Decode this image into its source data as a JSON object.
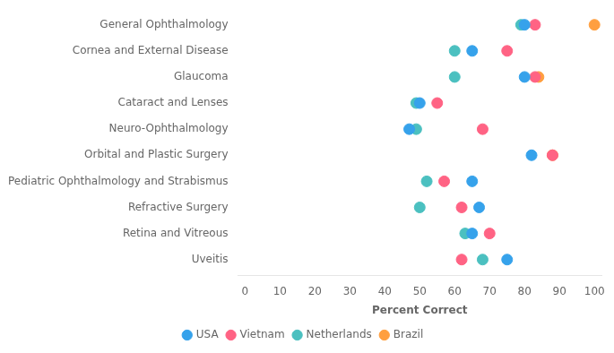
{
  "chart_data": {
    "type": "scatter",
    "categories": [
      "General Ophthalmology",
      "Cornea and External Disease",
      "Glaucoma",
      "Cataract and Lenses",
      "Neuro-Ophthalmology",
      "Orbital and Plastic Surgery",
      "Pediatric Ophthalmology and Strabismus",
      "Refractive Surgery",
      "Retina and Vitreous",
      "Uveitis"
    ],
    "series": [
      {
        "name": "USA",
        "values": [
          80,
          65,
          80,
          50,
          47,
          82,
          65,
          67,
          65,
          75
        ]
      },
      {
        "name": "Vietnam",
        "values": [
          83,
          75,
          83,
          55,
          68,
          88,
          57,
          62,
          70,
          62
        ]
      },
      {
        "name": "Netherlands",
        "values": [
          79,
          60,
          60,
          49,
          49,
          null,
          52,
          50,
          63,
          68
        ]
      },
      {
        "name": "Brazil",
        "values": [
          100,
          null,
          84,
          null,
          null,
          88,
          null,
          null,
          null,
          null
        ]
      }
    ],
    "xlabel": "Percent Correct",
    "xlim": [
      -2,
      102
    ],
    "xticks": [
      0,
      10,
      20,
      30,
      40,
      50,
      60,
      70,
      80,
      90,
      100
    ],
    "grid": false,
    "legend": "bottom"
  }
}
